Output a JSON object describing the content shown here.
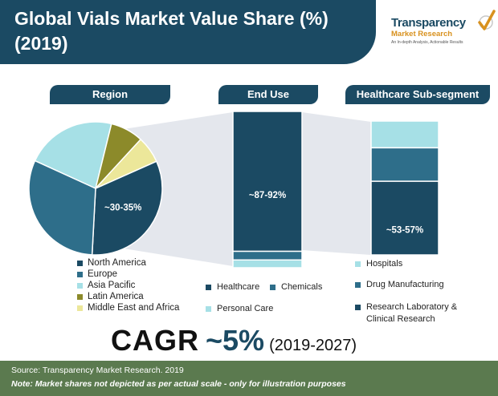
{
  "title": "Global Vials Market Value Share (%) (2019)",
  "logo": {
    "name": "Transparency",
    "sub": "Market Research",
    "tagline": "An In-depth Analysis, Actionable Results"
  },
  "colors": {
    "navy": "#1b4a63",
    "teal": "#2e6e8a",
    "aqua": "#a6e0e6",
    "olive": "#8c8a2a",
    "sand": "#ece79a",
    "footer": "#5b7a4f"
  },
  "chart_data": [
    {
      "type": "pie",
      "title": "Region",
      "categories": [
        "North America",
        "Europe",
        "Asia Pacific",
        "Latin America",
        "Middle East and Africa"
      ],
      "values": [
        32.5,
        31,
        22,
        8,
        6.5
      ],
      "labels": [
        "~30-35%",
        "",
        "",
        "",
        ""
      ],
      "colors": [
        "#1b4a63",
        "#2e6e8a",
        "#a6e0e6",
        "#8c8a2a",
        "#ece79a"
      ],
      "legend_position": "bottom"
    },
    {
      "type": "bar",
      "title": "End Use",
      "stacked": true,
      "categories": [
        "Healthcare",
        "Chemicals",
        "Personal Care"
      ],
      "values": [
        89.5,
        5.5,
        5
      ],
      "labels": [
        "~87-92%",
        "",
        ""
      ],
      "colors": [
        "#1b4a63",
        "#2e6e8a",
        "#a6e0e6"
      ],
      "legend_position": "bottom"
    },
    {
      "type": "bar",
      "title": "Healthcare Sub-segment",
      "stacked": true,
      "categories": [
        "Hospitals",
        "Drug Manufacturing",
        "Research Laboratory & Clinical Research"
      ],
      "values": [
        20,
        25,
        55
      ],
      "labels": [
        "",
        "",
        "~53-57%"
      ],
      "colors": [
        "#a6e0e6",
        "#2e6e8a",
        "#1b4a63"
      ],
      "legend_position": "bottom"
    }
  ],
  "cagr": {
    "label": "CAGR",
    "value": "~5%",
    "period": "(2019-2027)"
  },
  "footer": {
    "source": "Source: Transparency Market Research. 2019",
    "note": "Note: Market shares not depicted as per actual scale - only for illustration purposes"
  }
}
